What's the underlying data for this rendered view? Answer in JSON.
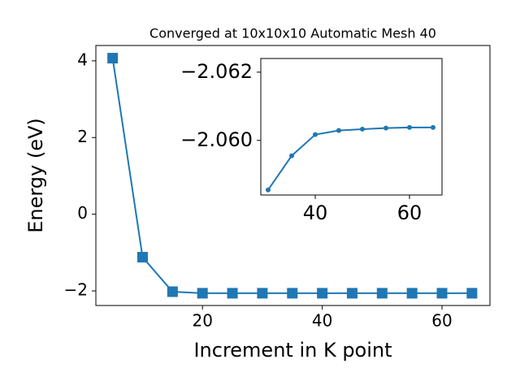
{
  "chart_data": [
    {
      "type": "line",
      "title": "Converged at 10x10x10 Automatic Mesh 40",
      "xlabel": "Increment in K point",
      "ylabel": "Energy (eV)",
      "x": [
        5,
        10,
        15,
        20,
        25,
        30,
        35,
        40,
        45,
        50,
        55,
        60,
        65
      ],
      "series": [
        {
          "color": "#1f77b4",
          "marker": "square",
          "values": [
            4.07,
            -1.12,
            -2.02,
            -2.06,
            -2.06,
            -2.06,
            -2.06,
            -2.06,
            -2.06,
            -2.06,
            -2.06,
            -2.06,
            -2.06
          ]
        }
      ],
      "xlim": [
        2.2,
        68
      ],
      "ylim": [
        -2.38,
        4.4
      ],
      "xticks": [
        20,
        40,
        60
      ],
      "yticks": [
        {
          "value": -2,
          "label": "−2"
        },
        0,
        2,
        4
      ]
    },
    {
      "type": "line",
      "x": [
        30,
        35,
        40,
        45,
        50,
        55,
        60,
        65
      ],
      "series": [
        {
          "color": "#1f77b4",
          "marker": "circle",
          "values": [
            -2.05855,
            -2.05955,
            -2.06017,
            -2.06029,
            -2.06033,
            -2.06036,
            -2.06038,
            -2.06038
          ]
        }
      ],
      "xlim": [
        28.45,
        66.9
      ],
      "ylim": [
        -2.0584,
        -2.0624
      ],
      "xticks": [
        40,
        60
      ],
      "yticks": [
        {
          "value": -2.062,
          "label": "−2.062"
        },
        {
          "value": -2.06,
          "label": "−2.060"
        }
      ]
    }
  ]
}
